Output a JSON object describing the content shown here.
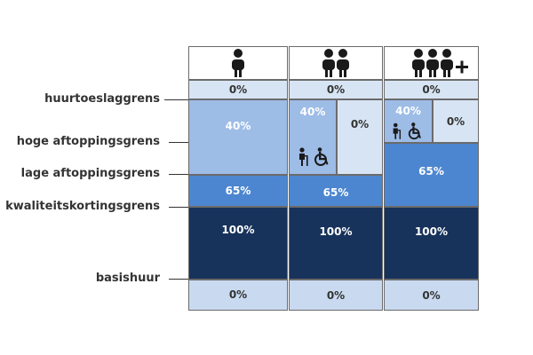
{
  "colors": {
    "white": "#ffffff",
    "very_light": "#d7e4f4",
    "light": "#9dbce6",
    "mid": "#4d86d0",
    "dark": "#17335b",
    "text_dark": "#333333",
    "text_white": "#ffffff"
  },
  "row_labels": {
    "huurtoeslaggrens": "huurtoeslaggrens",
    "hoge": "hoge aftoppingsgrens",
    "lage": "lage aftoppingsgrens",
    "kwaliteit": "kwaliteitskortingsgrens",
    "basishuur": "basishuur"
  },
  "columns": [
    {
      "icon": "single-person-icon"
    },
    {
      "icon": "two-persons-icon"
    },
    {
      "icon": "three-plus-persons-icon"
    }
  ],
  "values": {
    "top_0": "0%",
    "c1_40": "40%",
    "c1_65": "65%",
    "c2_40": "40%",
    "c2_0": "0%",
    "c2_65": "65%",
    "c3_40": "40%",
    "c3_0": "0%",
    "c3_65": "65%",
    "pct_100": "100%",
    "bottom_0": "0%"
  },
  "special_icons": [
    "elderly-person-icon",
    "wheelchair-icon"
  ]
}
